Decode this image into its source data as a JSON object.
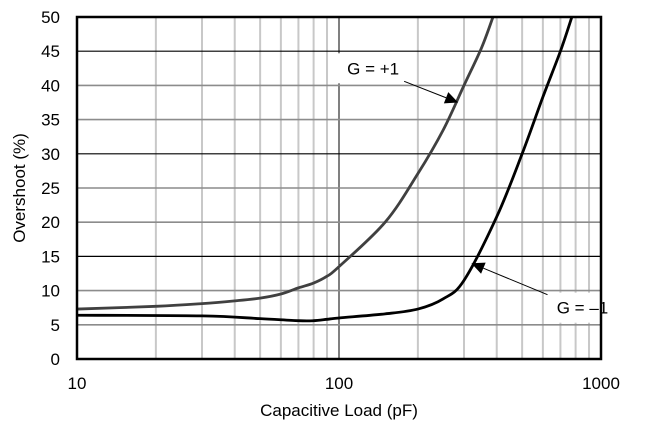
{
  "chart_data": {
    "type": "line",
    "title": "",
    "xlabel": "Capacitive Load (pF)",
    "ylabel": "Overshoot (%)",
    "xscale": "log",
    "xlim": [
      10,
      1000
    ],
    "ylim": [
      0,
      50
    ],
    "grid": true,
    "legend_position": "none (inline annotations)",
    "x_ticks": [
      10,
      100,
      1000
    ],
    "x_tick_labels": [
      "10",
      "100",
      "1000"
    ],
    "y_ticks": [
      0,
      5,
      10,
      15,
      20,
      25,
      30,
      35,
      40,
      45,
      50
    ],
    "y_tick_labels": [
      "0",
      "5",
      "10",
      "15",
      "20",
      "25",
      "30",
      "35",
      "40",
      "45",
      "50"
    ],
    "series": [
      {
        "name": "G = +1",
        "color": "#404040",
        "x": [
          10,
          20,
          30,
          40,
          50,
          60,
          70,
          80,
          90,
          100,
          150,
          200,
          250,
          300,
          350,
          387
        ],
        "y": [
          7.3,
          7.7,
          8.1,
          8.5,
          8.9,
          9.5,
          10.4,
          11.1,
          12.1,
          13.5,
          20.0,
          27.1,
          33.5,
          40.0,
          45.5,
          50.0
        ]
      },
      {
        "name": "G = –1",
        "color": "#000000",
        "x": [
          10,
          30,
          50,
          70,
          80,
          90,
          100,
          150,
          200,
          250,
          300,
          400,
          500,
          600,
          700,
          774
        ],
        "y": [
          6.4,
          6.3,
          5.9,
          5.6,
          5.6,
          5.8,
          6.0,
          6.6,
          7.3,
          8.8,
          11.5,
          20.8,
          30.0,
          38.3,
          45.0,
          50.0
        ]
      }
    ],
    "annotations": [
      {
        "text": "G = +1",
        "target_series": "G = +1",
        "label_x_pF": 135,
        "label_y": 42.5,
        "arrow_to_x_pF": 285,
        "arrow_to_y": 37.5
      },
      {
        "text": "G = –1",
        "target_series": "G = –1",
        "label_x_pF": 850,
        "label_y": 7.5,
        "arrow_to_x_pF": 320,
        "arrow_to_y": 14.0
      }
    ],
    "major_gridlines_y_dark": [
      15,
      30,
      45
    ],
    "major_gridline_x_dark": [
      100
    ]
  },
  "colors": {
    "background": "#ffffff",
    "frame": "#000000",
    "grid_light": "#c8c8c8",
    "grid_mid": "#8c8c8c",
    "grid_dark": "#000000"
  }
}
